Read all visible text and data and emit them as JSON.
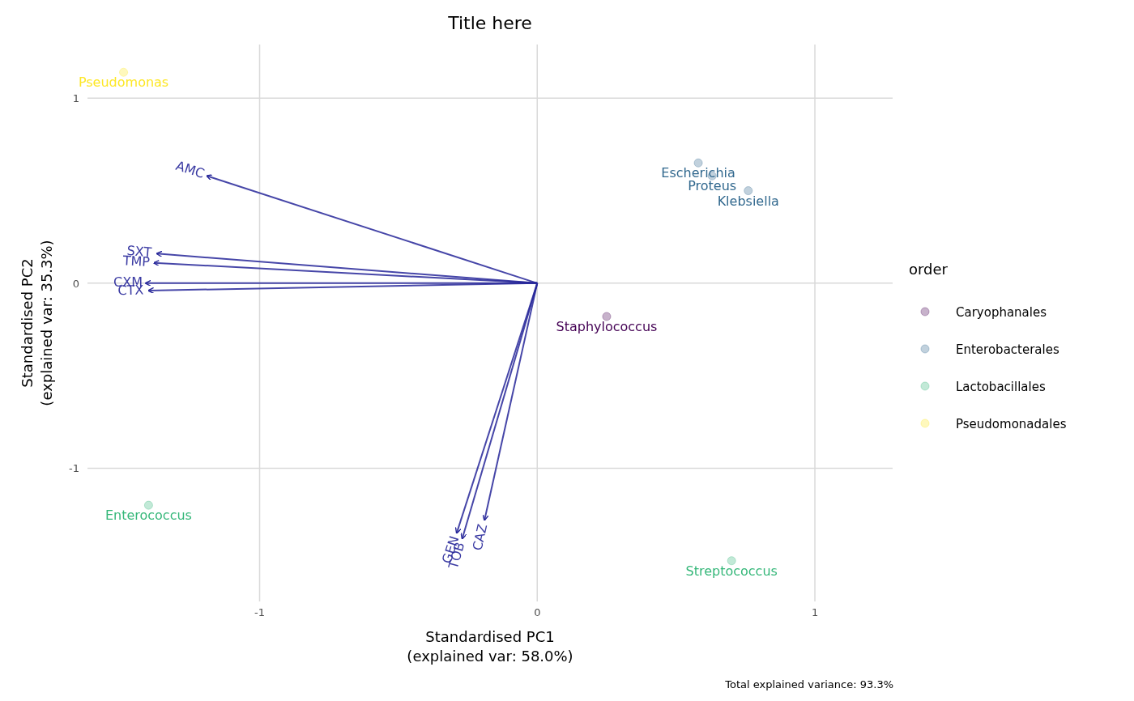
{
  "chart_data": {
    "type": "scatter",
    "title": "Title here",
    "xlabel": "Standardised PC1\n(explained var: 58.0%)",
    "ylabel": "Standardised PC2\n(explained var: 35.3%)",
    "legend_title": "order",
    "legend": "right",
    "grid": true,
    "marker": "circle",
    "xlim": [
      -1.62,
      1.28
    ],
    "ylim": [
      -1.72,
      1.29
    ],
    "xticks": [
      -1,
      0,
      1
    ],
    "yticks": [
      -1,
      0,
      1
    ],
    "series": [
      {
        "name": "Caryophanales",
        "color": "#440154",
        "x": [
          0.25
        ],
        "values": [
          -0.18
        ]
      },
      {
        "name": "Enterobacterales",
        "color": "#31688e",
        "x": [
          0.58,
          0.63,
          0.76
        ],
        "values": [
          0.65,
          0.58,
          0.5
        ]
      },
      {
        "name": "Lactobacillales",
        "color": "#35b779",
        "x": [
          -1.4,
          0.7
        ],
        "values": [
          -1.2,
          -1.5
        ]
      },
      {
        "name": "Pseudomonadales",
        "color": "#fde725",
        "x": [
          -1.49
        ],
        "values": [
          1.14
        ]
      },
      {
        "type": "line",
        "marker": "none",
        "color": "#262699",
        "x": [
          0,
          -1.19
        ],
        "values": [
          0,
          0.58
        ]
      },
      {
        "type": "line",
        "marker": "none",
        "color": "#262699",
        "x": [
          0,
          -1.37
        ],
        "values": [
          0,
          0.16
        ]
      },
      {
        "type": "line",
        "marker": "none",
        "color": "#262699",
        "x": [
          0,
          -1.38
        ],
        "values": [
          0,
          0.11
        ]
      },
      {
        "type": "line",
        "marker": "none",
        "color": "#262699",
        "x": [
          0,
          -1.41
        ],
        "values": [
          0,
          0
        ]
      },
      {
        "type": "line",
        "marker": "none",
        "color": "#262699",
        "x": [
          0,
          -1.4
        ],
        "values": [
          0,
          -0.04
        ]
      },
      {
        "type": "line",
        "marker": "none",
        "color": "#262699",
        "x": [
          0,
          -0.29
        ],
        "values": [
          0,
          -1.35
        ]
      },
      {
        "type": "line",
        "marker": "none",
        "color": "#262699",
        "x": [
          0,
          -0.27
        ],
        "values": [
          0,
          -1.38
        ]
      },
      {
        "type": "line",
        "marker": "none",
        "color": "#262699",
        "x": [
          0,
          -0.19
        ],
        "values": [
          0,
          -1.28
        ]
      }
    ],
    "annotations": [
      {
        "text": "Staphylococcus",
        "x": 0.25,
        "y": -0.18
      },
      {
        "text": "Escherichia",
        "x": 0.58,
        "y": 0.65
      },
      {
        "text": "Proteus",
        "x": 0.63,
        "y": 0.58
      },
      {
        "text": "Klebsiella",
        "x": 0.76,
        "y": 0.5
      },
      {
        "text": "Enterococcus",
        "x": -1.4,
        "y": -1.2
      },
      {
        "text": "Streptococcus",
        "x": 0.7,
        "y": -1.5
      },
      {
        "text": "Pseudomonas",
        "x": -1.49,
        "y": 1.14
      },
      {
        "text": "AMC",
        "x": -1.19,
        "y": 0.58
      },
      {
        "text": "SXT",
        "x": -1.37,
        "y": 0.16
      },
      {
        "text": "TMP",
        "x": -1.38,
        "y": 0.11
      },
      {
        "text": "CXM",
        "x": -1.41,
        "y": 0
      },
      {
        "text": "CTX",
        "x": -1.4,
        "y": -0.04
      },
      {
        "text": "GEN",
        "x": -0.29,
        "y": -1.35
      },
      {
        "text": "TOB",
        "x": -0.27,
        "y": -1.38
      },
      {
        "text": "CAZ",
        "x": -0.19,
        "y": -1.28
      },
      "Total explained variance: 93.3%"
    ]
  }
}
